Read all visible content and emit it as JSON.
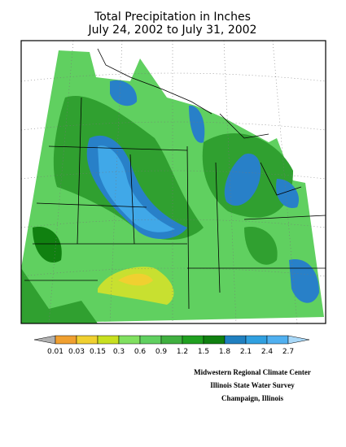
{
  "header": {
    "title_lines": [
      "Total Precipitation in Inches",
      "July 24, 2002 to July 31, 2002"
    ]
  },
  "legend": {
    "labels": [
      "0.01",
      "0.03",
      "0.15",
      "0.3",
      "0.6",
      "0.9",
      "1.2",
      "1.5",
      "1.8",
      "2.1",
      "2.4",
      "2.7"
    ]
  },
  "credits": [
    "Midwestern Regional Climate Center",
    "Illinois State Water Survey",
    "Champaign, Illinois"
  ]
}
